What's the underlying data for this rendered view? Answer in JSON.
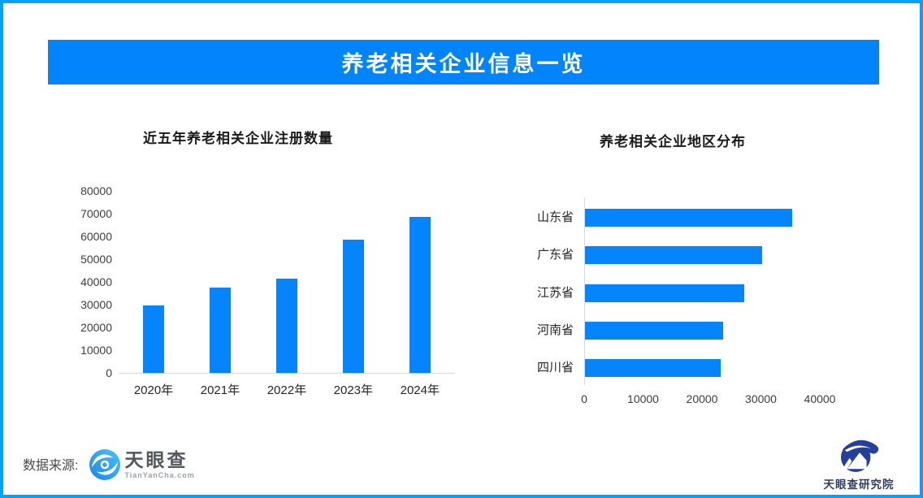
{
  "header": {
    "title": "养老相关企业信息一览"
  },
  "colors": {
    "border": "#00a3fd",
    "banner": "#0284fd",
    "bar": "#0584fc",
    "axis_line": "#d9d9d9",
    "tyc_blue": "#2da2ef",
    "institute_navy": "#24409a"
  },
  "chart_data": [
    {
      "type": "bar",
      "orientation": "vertical",
      "title": "近五年养老相关企业注册数量",
      "categories": [
        "2020年",
        "2021年",
        "2022年",
        "2023年",
        "2024年"
      ],
      "values": [
        29500,
        37500,
        41500,
        58500,
        68500
      ],
      "xlabel": "",
      "ylabel": "",
      "ylim": [
        0,
        80000
      ],
      "ytick_step": 10000,
      "grid": false,
      "legend": "none"
    },
    {
      "type": "bar",
      "orientation": "horizontal",
      "title": "养老相关企业地区分布",
      "categories": [
        "山东省",
        "广东省",
        "江苏省",
        "河南省",
        "四川省"
      ],
      "values": [
        35200,
        30100,
        27000,
        23500,
        23000
      ],
      "xlabel": "",
      "ylabel": "",
      "xlim": [
        0,
        40000
      ],
      "xtick_step": 10000,
      "grid": false,
      "legend": "none"
    }
  ],
  "footer": {
    "source_label": "数据来源:",
    "logo_text": "天眼查",
    "logo_domain": "TianYanCha.com",
    "institute_label": "天眼查研究院"
  }
}
